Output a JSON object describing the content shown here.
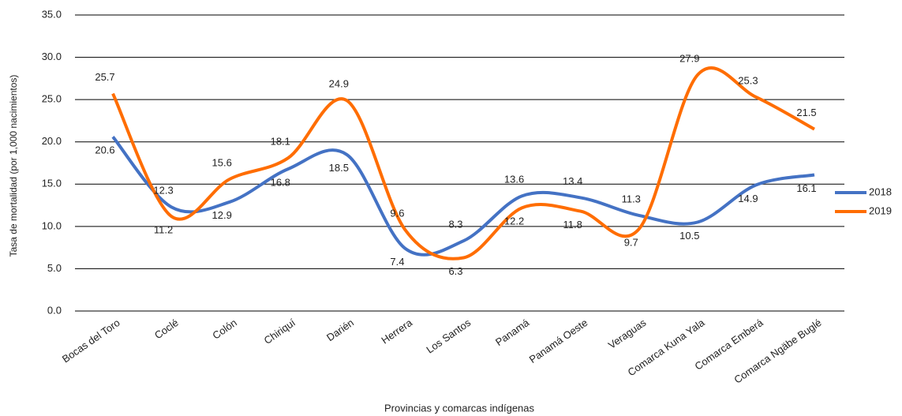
{
  "chart_data": {
    "type": "line",
    "y_label": "Tasa de mortalidad (por 1,000 nacimientos)",
    "x_label": "Provincias y comarcas indígenas",
    "categories": [
      "Bocas del Toro",
      "Coclé",
      "Colón",
      "Chiriquí",
      "Darién",
      "Herrera",
      "Los Santos",
      "Panamá",
      "Panamá Oeste",
      "Veraguas",
      "Comarca Kuna Yala",
      "Comarca Emberá",
      "Comarca Ngäbe Buglé"
    ],
    "series": [
      {
        "name": "2018",
        "color": "#4472c4",
        "values": [
          20.6,
          12.3,
          12.9,
          16.8,
          18.5,
          7.4,
          8.3,
          13.6,
          13.4,
          11.3,
          10.5,
          14.9,
          16.1
        ]
      },
      {
        "name": "2019",
        "color": "#ff6d01",
        "values": [
          25.7,
          11.2,
          15.6,
          18.1,
          24.9,
          9.6,
          6.3,
          12.2,
          11.8,
          9.7,
          27.9,
          25.3,
          21.5
        ]
      }
    ],
    "ylim": [
      0,
      35
    ],
    "yticks": [
      {
        "value": 0,
        "label": "0.0"
      },
      {
        "value": 5,
        "label": "5.0"
      },
      {
        "value": 10,
        "label": "10.0"
      },
      {
        "value": 15,
        "label": "15.0"
      },
      {
        "value": 20,
        "label": "20.0"
      },
      {
        "value": 25,
        "label": "25.0"
      },
      {
        "value": 30,
        "label": "30.0"
      },
      {
        "value": 35,
        "label": "35.0"
      }
    ],
    "grid": true,
    "legend": "right"
  }
}
